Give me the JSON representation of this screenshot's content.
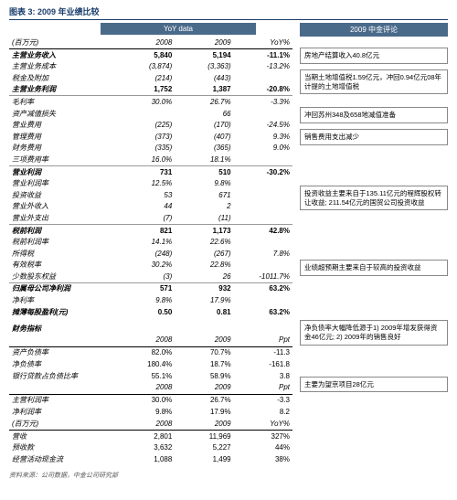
{
  "chartTitle": "图表 3: 2009 年业绩比较",
  "yoyHeader": "YoY data",
  "commentHeader": "2009 中金评论",
  "unit": "(百万元)",
  "cols": [
    "2008",
    "2009",
    "YoY%"
  ],
  "rows": [
    {
      "l": "主营业务收入",
      "a": "5,840",
      "b": "5,194",
      "c": "-11.1%",
      "bold": 1
    },
    {
      "l": "主营业务成本",
      "a": "(3,874)",
      "b": "(3,363)",
      "c": "-13.2%",
      "ital": 1
    },
    {
      "l": "税金及附加",
      "a": "(214)",
      "b": "(443)",
      "c": "",
      "ital": 1
    },
    {
      "l": "主营业务利润",
      "a": "1,752",
      "b": "1,387",
      "c": "-20.8%",
      "bold": 1,
      "ul": 1
    },
    {
      "l": "毛利率",
      "a": "30.0%",
      "b": "26.7%",
      "c": "-3.3%",
      "ital": 1
    },
    {
      "l": "资产减值损失",
      "a": "",
      "b": "66",
      "c": "",
      "ital": 1
    },
    {
      "l": "营业费用",
      "a": "(225)",
      "b": "(170)",
      "c": "-24.5%",
      "ital": 1
    },
    {
      "l": "管理费用",
      "a": "(373)",
      "b": "(407)",
      "c": "9.3%",
      "ital": 1
    },
    {
      "l": "财务费用",
      "a": "(335)",
      "b": "(365)",
      "c": "9.0%",
      "ital": 1
    },
    {
      "l": "三项费用率",
      "a": "16.0%",
      "b": "18.1%",
      "c": "",
      "ital": 1,
      "ul": 1
    },
    {
      "l": "营业利润",
      "a": "731",
      "b": "510",
      "c": "-30.2%",
      "bold": 1
    },
    {
      "l": "营业利润率",
      "a": "12.5%",
      "b": "9.8%",
      "c": "",
      "ital": 1
    },
    {
      "l": "投资收益",
      "a": "53",
      "b": "671",
      "c": "",
      "ital": 1
    },
    {
      "l": "营业外收入",
      "a": "44",
      "b": "2",
      "c": "",
      "ital": 1
    },
    {
      "l": "营业外支出",
      "a": "(7)",
      "b": "(11)",
      "c": "",
      "ital": 1,
      "ul": 1
    },
    {
      "l": "税前利润",
      "a": "821",
      "b": "1,173",
      "c": "42.8%",
      "bold": 1
    },
    {
      "l": "税前利润率",
      "a": "14.1%",
      "b": "22.6%",
      "c": "",
      "ital": 1
    },
    {
      "l": "所得税",
      "a": "(248)",
      "b": "(267)",
      "c": "7.8%",
      "ital": 1
    },
    {
      "l": "有效税率",
      "a": "30.2%",
      "b": "22.8%",
      "c": "",
      "ital": 1
    },
    {
      "l": "少数股东权益",
      "a": "(3)",
      "b": "26",
      "c": "-1011.7%",
      "ital": 1,
      "ul": 1
    },
    {
      "l": "归属母公司净利润",
      "a": "571",
      "b": "932",
      "c": "63.2%",
      "bold": 1
    },
    {
      "l": "净利率",
      "a": "9.8%",
      "b": "17.9%",
      "c": "",
      "ital": 1
    },
    {
      "l": "摊薄每股盈利(元)",
      "a": "0.50",
      "b": "0.81",
      "c": "63.2%",
      "bold": 1
    }
  ],
  "finLabel": "财务指标",
  "pptCols": [
    "2008",
    "2009",
    "Ppt"
  ],
  "finRows1": [
    {
      "l": "资产负债率",
      "a": "82.0%",
      "b": "70.7%",
      "c": "-11.3"
    },
    {
      "l": "净负债率",
      "a": "180.4%",
      "b": "18.7%",
      "c": "-161.8"
    },
    {
      "l": "银行贷款占负债比率",
      "a": "55.1%",
      "b": "58.9%",
      "c": "3.8"
    }
  ],
  "finRows2": [
    {
      "l": "主营利润率",
      "a": "30.0%",
      "b": "26.7%",
      "c": "-3.3"
    },
    {
      "l": "净利润率",
      "a": "9.8%",
      "b": "17.9%",
      "c": "8.2"
    }
  ],
  "yoyCols2": [
    "2008",
    "2009",
    "YoY%"
  ],
  "finRows3": [
    {
      "l": "营收",
      "a": "2,801",
      "b": "11,969",
      "c": "327%"
    },
    {
      "l": "预收款",
      "a": "3,632",
      "b": "5,227",
      "c": "44%"
    },
    {
      "l": "经营活动现金流",
      "a": "1,088",
      "b": "1,499",
      "c": "38%"
    }
  ],
  "comments": {
    "c1": "房地产结算收入40.8亿元",
    "c2": "当期土地增值税1.59亿元，冲回0.94亿元08年计提的土地增值税",
    "c3": "冲回苏州348及658地减值准备",
    "c4": "销售费用支出减少",
    "c5": "投资收益主要来自于135.11亿元的程辉股权转让收益; 211.54亿元的国贸公司投资收益",
    "c6": "业绩超预期主要来自于较高的投资收益",
    "c7": "净负债率大幅降低源于1) 2009年增发获得资金46亿元; 2) 2009年的销售良好",
    "c8": "主要为望京项目28亿元"
  },
  "footnote": "资料来源：公司数据，中金公司研究部"
}
